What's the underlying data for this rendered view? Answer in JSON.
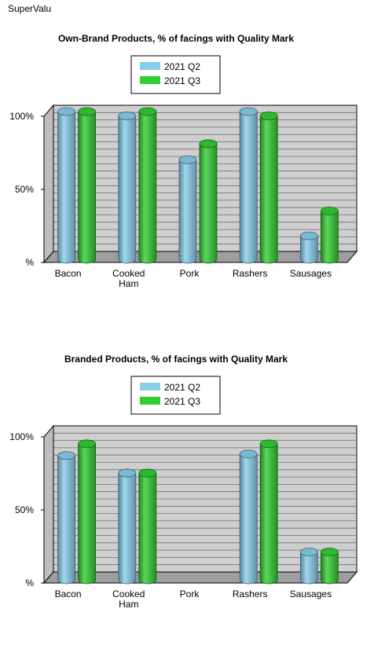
{
  "page": {
    "store_name": "SuperValu"
  },
  "chart_data": [
    {
      "type": "bar",
      "title": "Own-Brand Products, % of facings with Quality Mark",
      "categories": [
        [
          "Bacon"
        ],
        [
          "Cooked",
          "Ham"
        ],
        [
          "Pork"
        ],
        [
          "Rashers"
        ],
        [
          "Sausages"
        ]
      ],
      "series": [
        {
          "name": "2021 Q2",
          "color": "#87ceeb",
          "values": [
            100,
            97,
            67,
            100,
            15
          ]
        },
        {
          "name": "2021 Q3",
          "color": "#32cd32",
          "values": [
            100,
            100,
            78,
            97,
            32
          ]
        }
      ],
      "ylim": [
        0,
        100
      ],
      "yticks": [
        {
          "value": 0,
          "label": "%"
        },
        {
          "value": 50,
          "label": "50%"
        },
        {
          "value": 100,
          "label": "100%"
        }
      ],
      "legend": "top-center",
      "grid": true
    },
    {
      "type": "bar",
      "title": "Branded Products, % of facings with Quality Mark",
      "categories": [
        [
          "Bacon"
        ],
        [
          "Cooked",
          "Ham"
        ],
        [
          "Pork"
        ],
        [
          "Rashers"
        ],
        [
          "Sausages"
        ]
      ],
      "series": [
        {
          "name": "2021 Q2",
          "color": "#87ceeb",
          "values": [
            84,
            72,
            null,
            85,
            18
          ]
        },
        {
          "name": "2021 Q3",
          "color": "#32cd32",
          "values": [
            92,
            72,
            null,
            92,
            18
          ]
        }
      ],
      "ylim": [
        0,
        100
      ],
      "yticks": [
        {
          "value": 0,
          "label": "%"
        },
        {
          "value": 50,
          "label": "50%"
        },
        {
          "value": 100,
          "label": "100%"
        }
      ],
      "legend": "top-center",
      "grid": true
    }
  ]
}
